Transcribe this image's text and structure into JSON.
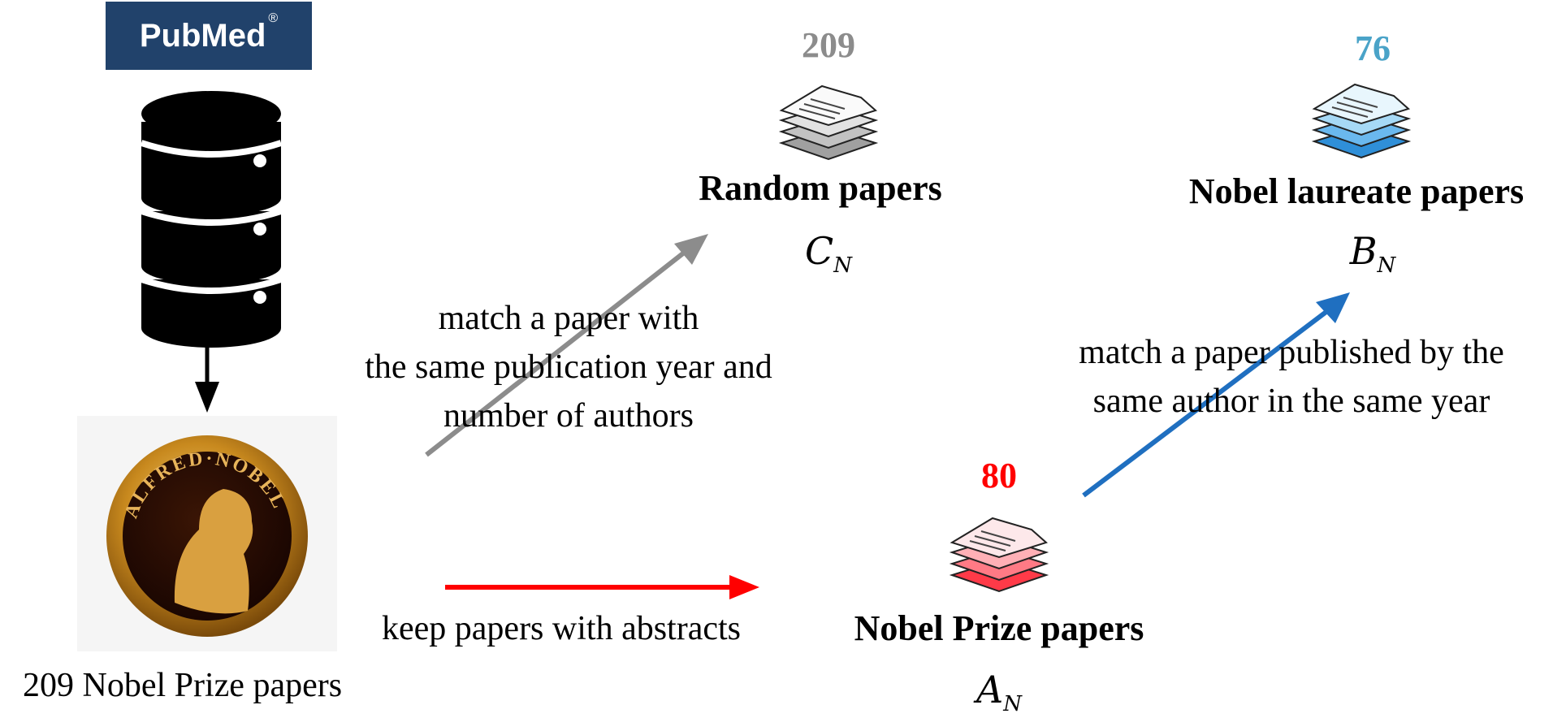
{
  "source": {
    "logo_text": "PubMed",
    "registered": "®"
  },
  "nobel_source_label": "209 Nobel Prize papers",
  "medal_text": "ALFRED·NOBEL",
  "random": {
    "count": "209",
    "title": "Random papers",
    "symbol": "C",
    "symbol_sub": "N"
  },
  "laureate": {
    "count": "76",
    "title": "Nobel laureate papers",
    "symbol": "B",
    "symbol_sub": "N"
  },
  "prize": {
    "count": "80",
    "title": "Nobel Prize papers",
    "symbol": "A",
    "symbol_sub": "N"
  },
  "edges": {
    "to_random": [
      "match a paper with",
      "the same publication year and",
      "number of authors"
    ],
    "to_laureate": [
      "match a paper published by the",
      "same author in the same year"
    ],
    "to_prize": "keep papers with abstracts"
  },
  "colors": {
    "random": "#8c8c8c",
    "laureate": "#4aa3c8",
    "prize": "#ff0000",
    "blue_arrow": "#1f6fc0",
    "gray_arrow": "#8c8c8c",
    "red_arrow": "#ff0000",
    "pubmed_bg": "#21426b"
  }
}
